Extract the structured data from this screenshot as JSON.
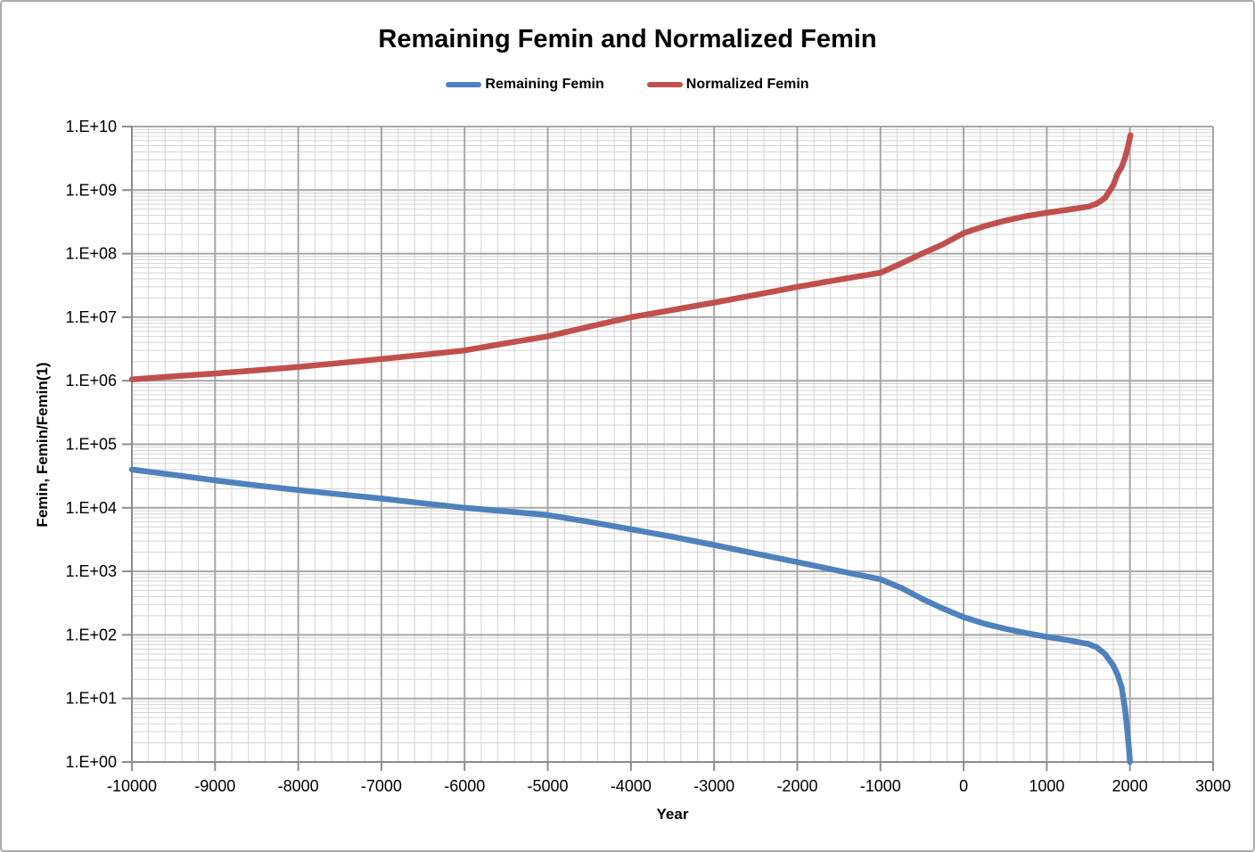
{
  "chart_data": {
    "type": "line",
    "title": "Remaining Femin and Normalized Femin",
    "xlabel": "Year",
    "ylabel": "Femin, Femin/Femin(1)",
    "legend_position": "top-center",
    "grid": "major-and-minor",
    "y_scale": "log",
    "y_range_exp": [
      0,
      10
    ],
    "x_range": [
      -10000,
      3000
    ],
    "x_major_step": 1000,
    "x_minor_step": 200,
    "x_tick_labels": [
      "-10000",
      "-9000",
      "-8000",
      "-7000",
      "-6000",
      "-5000",
      "-4000",
      "-3000",
      "-2000",
      "-1000",
      "0",
      "1000",
      "2000",
      "3000"
    ],
    "y_tick_labels": [
      "1.E+00",
      "1.E+01",
      "1.E+02",
      "1.E+03",
      "1.E+04",
      "1.E+05",
      "1.E+06",
      "1.E+07",
      "1.E+08",
      "1.E+09",
      "1.E+10"
    ],
    "series": [
      {
        "name": "Remaining Femin",
        "color": "#4F81BD",
        "points": [
          [
            -10000,
            40000
          ],
          [
            -9500,
            33000
          ],
          [
            -9000,
            27000
          ],
          [
            -8500,
            22500
          ],
          [
            -8000,
            19000
          ],
          [
            -7500,
            16300
          ],
          [
            -7000,
            14000
          ],
          [
            -6500,
            11800
          ],
          [
            -6000,
            10000
          ],
          [
            -5500,
            8800
          ],
          [
            -5000,
            7700
          ],
          [
            -4500,
            6000
          ],
          [
            -4000,
            4600
          ],
          [
            -3500,
            3500
          ],
          [
            -3000,
            2600
          ],
          [
            -2500,
            1900
          ],
          [
            -2000,
            1400
          ],
          [
            -1500,
            1020
          ],
          [
            -1000,
            750
          ],
          [
            -750,
            550
          ],
          [
            -500,
            370
          ],
          [
            -250,
            260
          ],
          [
            0,
            190
          ],
          [
            250,
            150
          ],
          [
            500,
            125
          ],
          [
            750,
            107
          ],
          [
            1000,
            93
          ],
          [
            1250,
            83
          ],
          [
            1500,
            72
          ],
          [
            1600,
            64
          ],
          [
            1700,
            50
          ],
          [
            1800,
            33
          ],
          [
            1850,
            24
          ],
          [
            1900,
            15
          ],
          [
            1940,
            7
          ],
          [
            1970,
            3
          ],
          [
            1990,
            1.5
          ],
          [
            2000,
            1
          ]
        ]
      },
      {
        "name": "Normalized Femin",
        "color": "#C0504D",
        "points": [
          [
            -10000,
            1050000
          ],
          [
            -9500,
            1170000
          ],
          [
            -9000,
            1300000
          ],
          [
            -8500,
            1460000
          ],
          [
            -8000,
            1650000
          ],
          [
            -7500,
            1900000
          ],
          [
            -7000,
            2200000
          ],
          [
            -6500,
            2560000
          ],
          [
            -6000,
            3000000
          ],
          [
            -5500,
            3900000
          ],
          [
            -5000,
            5000000
          ],
          [
            -4500,
            7100000
          ],
          [
            -4000,
            10000000
          ],
          [
            -3500,
            13000000
          ],
          [
            -3000,
            17000000
          ],
          [
            -2500,
            22500000
          ],
          [
            -2000,
            30000000
          ],
          [
            -1500,
            39000000
          ],
          [
            -1000,
            50000000
          ],
          [
            -750,
            70000000
          ],
          [
            -500,
            100000000
          ],
          [
            -250,
            140000000
          ],
          [
            0,
            210000000
          ],
          [
            250,
            270000000
          ],
          [
            500,
            330000000
          ],
          [
            750,
            390000000
          ],
          [
            1000,
            440000000
          ],
          [
            1250,
            490000000
          ],
          [
            1500,
            550000000
          ],
          [
            1600,
            610000000
          ],
          [
            1700,
            750000000
          ],
          [
            1800,
            1200000000
          ],
          [
            1850,
            1800000000
          ],
          [
            1900,
            2300000000
          ],
          [
            1940,
            3200000000
          ],
          [
            1970,
            4500000000
          ],
          [
            1990,
            5800000000
          ],
          [
            2005,
            7300000000
          ]
        ]
      }
    ]
  },
  "colors": {
    "grid_minor": "#D3D3D3",
    "grid_major": "#A6A6A6",
    "axis": "#8C8C8C",
    "text": "#000000",
    "frame_border": "#ACACAC",
    "background": "#FFFFFF"
  }
}
